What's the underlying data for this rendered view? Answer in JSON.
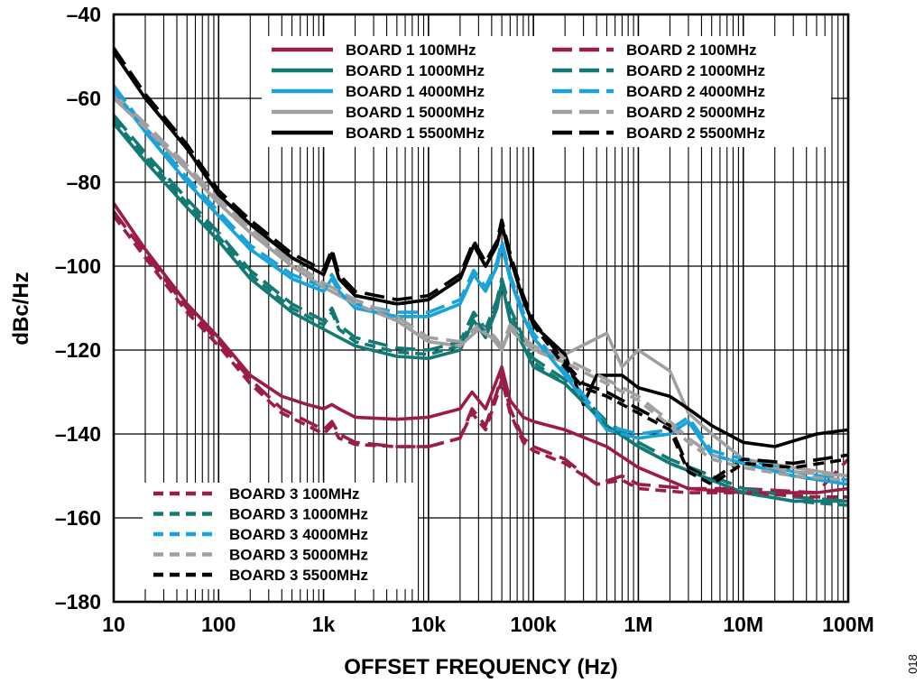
{
  "chart_data": {
    "type": "line",
    "xlabel": "OFFSET FREQUENCY (Hz)",
    "ylabel": "dBc/Hz",
    "x_scale": "log",
    "xlim": [
      10,
      100000000
    ],
    "ylim": [
      -180,
      -40
    ],
    "grid": true,
    "x_ticks": [
      {
        "value": 10,
        "label": "10"
      },
      {
        "value": 100,
        "label": "100"
      },
      {
        "value": 1000,
        "label": "1k"
      },
      {
        "value": 10000,
        "label": "10k"
      },
      {
        "value": 100000,
        "label": "100k"
      },
      {
        "value": 1000000,
        "label": "1M"
      },
      {
        "value": 10000000,
        "label": "10M"
      },
      {
        "value": 100000000,
        "label": "100M"
      }
    ],
    "y_ticks": [
      {
        "value": -40,
        "label": "–40"
      },
      {
        "value": -60,
        "label": "–60"
      },
      {
        "value": -80,
        "label": "–80"
      },
      {
        "value": -100,
        "label": "–100"
      },
      {
        "value": -120,
        "label": "–120"
      },
      {
        "value": -140,
        "label": "–140"
      },
      {
        "value": -160,
        "label": "–160"
      },
      {
        "value": -180,
        "label": "–180"
      }
    ],
    "legend_top": [
      "BOARD 1 100MHz",
      "BOARD 1 1000MHz",
      "BOARD 1 4000MHz",
      "BOARD 1 5000MHz",
      "BOARD 1 5500MHz",
      "BOARD 2 100MHz",
      "BOARD 2 1000MHz",
      "BOARD 2 4000MHz",
      "BOARD 2 5000MHz",
      "BOARD 2 5500MHz"
    ],
    "legend_bottom": [
      "BOARD 3 100MHz",
      "BOARD 3 1000MHz",
      "BOARD 3 4000MHz",
      "BOARD 3 5000MHz",
      "BOARD 3 5500MHz"
    ],
    "colors": {
      "100MHz": "#9b1d47",
      "1000MHz": "#127a72",
      "4000MHz": "#1aa3d9",
      "5000MHz": "#a0a0a0",
      "5500MHz": "#000000"
    },
    "series": [
      {
        "name": "BOARD 1 100MHz",
        "color": "#9b1d47",
        "dash": "solid",
        "x": [
          10,
          20,
          50,
          100,
          200,
          400,
          700,
          1000,
          1200,
          1400,
          2000,
          5000,
          10000,
          20000,
          26000,
          35000,
          45000,
          50000,
          60000,
          80000,
          100000,
          200000,
          500000,
          1000000,
          3000000,
          10000000,
          50000000,
          100000000
        ],
        "y": [
          -85,
          -96,
          -109,
          -117,
          -126,
          -131,
          -133,
          -134,
          -133,
          -134,
          -136,
          -136.5,
          -136,
          -134,
          -130,
          -134,
          -127,
          -124,
          -132,
          -136,
          -137,
          -139,
          -143,
          -148,
          -153,
          -154,
          -154,
          -153
        ]
      },
      {
        "name": "BOARD 1 1000MHz",
        "color": "#127a72",
        "dash": "solid",
        "x": [
          10,
          20,
          50,
          100,
          200,
          500,
          1000,
          2000,
          5000,
          10000,
          20000,
          27000,
          35000,
          45000,
          50000,
          60000,
          80000,
          100000,
          200000,
          500000,
          1000000,
          2000000,
          5000000,
          10000000,
          30000000,
          100000000
        ],
        "y": [
          -66,
          -75,
          -86,
          -94,
          -103,
          -111,
          -115,
          -119,
          -121.5,
          -122,
          -120,
          -113,
          -117,
          -110,
          -104,
          -113,
          -119,
          -124,
          -128,
          -138,
          -143,
          -147,
          -151,
          -154,
          -156,
          -156
        ]
      },
      {
        "name": "BOARD 1 4000MHz",
        "color": "#1aa3d9",
        "dash": "solid",
        "x": [
          10,
          20,
          50,
          100,
          200,
          500,
          1000,
          1200,
          1400,
          2000,
          5000,
          10000,
          20000,
          27000,
          35000,
          45000,
          50000,
          60000,
          80000,
          100000,
          200000,
          500000,
          1000000,
          2000000,
          3000000,
          5000000,
          10000000,
          30000000,
          100000000
        ],
        "y": [
          -58,
          -68,
          -80,
          -88,
          -96,
          -103,
          -106,
          -103,
          -106,
          -110,
          -112,
          -112,
          -109,
          -102,
          -106,
          -100,
          -95,
          -103,
          -112,
          -117,
          -126,
          -139,
          -141,
          -140,
          -137,
          -145,
          -147,
          -150,
          -152
        ]
      },
      {
        "name": "BOARD 1 5000MHz",
        "color": "#a0a0a0",
        "dash": "solid",
        "x": [
          10,
          20,
          50,
          100,
          200,
          500,
          1000,
          2000,
          5000,
          10000,
          20000,
          30000,
          40000,
          50000,
          60000,
          80000,
          100000,
          200000,
          500000,
          700000,
          1000000,
          2000000,
          3000000,
          5000000,
          10000000,
          30000000,
          100000000
        ],
        "y": [
          -60,
          -67,
          -77,
          -85,
          -92,
          -100,
          -105,
          -109,
          -113,
          -118,
          -119,
          -115,
          -117,
          -120,
          -115,
          -118,
          -120,
          -121,
          -116,
          -124,
          -120,
          -125,
          -135,
          -140,
          -146,
          -148,
          -150
        ]
      },
      {
        "name": "BOARD 1 5500MHz",
        "color": "#000000",
        "dash": "solid",
        "x": [
          10,
          20,
          50,
          100,
          200,
          500,
          1000,
          1200,
          1400,
          2000,
          5000,
          10000,
          20000,
          27000,
          35000,
          45000,
          50000,
          60000,
          80000,
          100000,
          200000,
          300000,
          400000,
          700000,
          1000000,
          2000000,
          3000000,
          5000000,
          10000000,
          20000000,
          50000000,
          100000000
        ],
        "y": [
          -49,
          -60,
          -72,
          -83,
          -90,
          -98,
          -102,
          -97,
          -103,
          -107,
          -109,
          -108,
          -103,
          -95,
          -100,
          -95,
          -90,
          -98,
          -108,
          -114,
          -121,
          -133,
          -126,
          -126,
          -129,
          -131,
          -134,
          -138,
          -142,
          -143,
          -140,
          -139
        ]
      },
      {
        "name": "BOARD 2 100MHz",
        "color": "#9b1d47",
        "dash": "long",
        "x": [
          10,
          20,
          50,
          100,
          200,
          400,
          700,
          1000,
          1200,
          1400,
          2000,
          5000,
          10000,
          20000,
          26000,
          35000,
          45000,
          50000,
          60000,
          80000,
          100000,
          200000,
          400000,
          700000,
          1000000,
          3000000,
          10000000,
          50000000,
          100000000
        ],
        "y": [
          -87,
          -97,
          -110,
          -118,
          -127,
          -134,
          -137,
          -139,
          -137,
          -140,
          -142,
          -143,
          -143,
          -141,
          -134,
          -138,
          -130,
          -126,
          -134,
          -141,
          -143,
          -146,
          -152,
          -150,
          -152,
          -153,
          -153,
          -154,
          -146
        ]
      },
      {
        "name": "BOARD 2 1000MHz",
        "color": "#127a72",
        "dash": "long",
        "x": [
          10,
          20,
          50,
          100,
          200,
          500,
          1000,
          1200,
          1400,
          2000,
          5000,
          10000,
          20000,
          27000,
          35000,
          45000,
          50000,
          60000,
          80000,
          100000,
          200000,
          500000,
          1000000,
          2000000,
          5000000,
          10000000,
          30000000,
          100000000
        ],
        "y": [
          -64,
          -73,
          -84,
          -92,
          -101,
          -109,
          -113,
          -110,
          -114,
          -117,
          -119.5,
          -120,
          -118,
          -111,
          -115,
          -108,
          -103,
          -110,
          -117,
          -122,
          -127,
          -137,
          -142,
          -146,
          -150,
          -153,
          -155,
          -156
        ]
      },
      {
        "name": "BOARD 2 4000MHz",
        "color": "#1aa3d9",
        "dash": "long",
        "x": [
          10,
          20,
          50,
          100,
          200,
          500,
          1000,
          1200,
          1400,
          2000,
          5000,
          10000,
          20000,
          27000,
          35000,
          45000,
          50000,
          60000,
          80000,
          100000,
          200000,
          500000,
          1000000,
          2000000,
          3000000,
          5000000,
          10000000,
          30000000,
          100000000
        ],
        "y": [
          -57,
          -67,
          -79,
          -87,
          -95,
          -102,
          -105,
          -102,
          -105,
          -109,
          -111,
          -111,
          -108,
          -101,
          -105,
          -99,
          -94,
          -102,
          -111,
          -116,
          -125,
          -138,
          -140,
          -139,
          -136,
          -144,
          -146,
          -149,
          -151
        ]
      },
      {
        "name": "BOARD 2 5000MHz",
        "color": "#a0a0a0",
        "dash": "long",
        "x": [
          10,
          20,
          50,
          100,
          200,
          500,
          1000,
          2000,
          5000,
          10000,
          20000,
          30000,
          40000,
          50000,
          60000,
          80000,
          100000,
          200000,
          500000,
          1000000,
          2000000,
          3000000,
          5000000,
          10000000,
          30000000,
          100000000
        ],
        "y": [
          -59,
          -66,
          -76,
          -84,
          -91,
          -99,
          -104,
          -108,
          -112,
          -117,
          -118,
          -114,
          -116,
          -119,
          -114,
          -117,
          -119,
          -122,
          -127,
          -131,
          -137,
          -141,
          -145,
          -147,
          -149,
          -150
        ]
      },
      {
        "name": "BOARD 2 5500MHz",
        "color": "#000000",
        "dash": "long",
        "x": [
          10,
          20,
          50,
          100,
          200,
          500,
          1000,
          1200,
          1400,
          2000,
          5000,
          10000,
          20000,
          27000,
          35000,
          45000,
          50000,
          60000,
          80000,
          100000,
          200000,
          300000,
          500000,
          1000000,
          2000000,
          3000000,
          5000000,
          10000000,
          30000000,
          100000000
        ],
        "y": [
          -48,
          -59,
          -71,
          -82,
          -89,
          -97,
          -101,
          -96,
          -102,
          -106,
          -108,
          -107,
          -102,
          -94,
          -99,
          -94,
          -89,
          -97,
          -107,
          -113,
          -123,
          -128,
          -130,
          -134,
          -138,
          -148,
          -151,
          -146,
          -147,
          -145
        ]
      },
      {
        "name": "BOARD 3 100MHz",
        "color": "#9b1d47",
        "dash": "short",
        "x": [
          10,
          20,
          50,
          100,
          200,
          400,
          700,
          1000,
          1200,
          1400,
          2000,
          5000,
          10000,
          20000,
          26000,
          35000,
          45000,
          50000,
          60000,
          80000,
          100000,
          200000,
          400000,
          700000,
          1000000,
          3000000,
          10000000,
          50000000,
          100000000
        ],
        "y": [
          -88,
          -98,
          -111,
          -119,
          -128,
          -135,
          -138,
          -140,
          -138,
          -141,
          -142.5,
          -143,
          -143,
          -141,
          -135,
          -139,
          -131,
          -127,
          -135,
          -142,
          -144,
          -147,
          -152,
          -151,
          -153,
          -154,
          -154,
          -155,
          -155
        ]
      },
      {
        "name": "BOARD 3 1000MHz",
        "color": "#127a72",
        "dash": "short",
        "x": [
          10,
          20,
          50,
          100,
          200,
          500,
          1000,
          1200,
          1400,
          2000,
          5000,
          10000,
          20000,
          27000,
          35000,
          45000,
          50000,
          60000,
          80000,
          100000,
          200000,
          500000,
          1000000,
          2000000,
          5000000,
          10000000,
          30000000,
          100000000
        ],
        "y": [
          -65,
          -74,
          -85,
          -93,
          -102,
          -110,
          -114,
          -111,
          -115,
          -118,
          -120.5,
          -121,
          -119,
          -112,
          -116,
          -109,
          -104,
          -111,
          -118,
          -123,
          -128,
          -138,
          -143,
          -147,
          -151,
          -154,
          -156,
          -157
        ]
      },
      {
        "name": "BOARD 3 4000MHz",
        "color": "#1aa3d9",
        "dash": "short",
        "x": [
          10,
          20,
          50,
          100,
          200,
          500,
          1000,
          1200,
          1400,
          2000,
          5000,
          10000,
          20000,
          27000,
          35000,
          45000,
          50000,
          60000,
          80000,
          100000,
          200000,
          500000,
          1000000,
          2000000,
          3000000,
          5000000,
          10000000,
          30000000,
          100000000
        ],
        "y": [
          -58,
          -68,
          -80,
          -88,
          -96,
          -103,
          -106,
          -103,
          -106,
          -110,
          -112,
          -112,
          -109,
          -102,
          -106,
          -100,
          -95,
          -103,
          -112,
          -117,
          -126,
          -139,
          -141,
          -140,
          -137,
          -145,
          -147,
          -150,
          -152
        ]
      },
      {
        "name": "BOARD 3 5000MHz",
        "color": "#a0a0a0",
        "dash": "short",
        "x": [
          10,
          20,
          50,
          100,
          200,
          500,
          1000,
          2000,
          5000,
          10000,
          20000,
          30000,
          40000,
          50000,
          60000,
          80000,
          100000,
          200000,
          500000,
          1000000,
          2000000,
          3000000,
          5000000,
          10000000,
          30000000,
          100000000
        ],
        "y": [
          -60,
          -67,
          -77,
          -85,
          -92,
          -100,
          -105,
          -109,
          -113,
          -118,
          -119,
          -115,
          -117,
          -120,
          -115,
          -118,
          -120,
          -123,
          -128,
          -132,
          -138,
          -142,
          -146,
          -148,
          -150,
          -151
        ]
      },
      {
        "name": "BOARD 3 5500MHz",
        "color": "#000000",
        "dash": "short",
        "x": [
          10,
          20,
          50,
          100,
          200,
          500,
          1000,
          1200,
          1400,
          2000,
          5000,
          10000,
          20000,
          27000,
          35000,
          45000,
          50000,
          60000,
          80000,
          100000,
          200000,
          300000,
          500000,
          1000000,
          2000000,
          3000000,
          5000000,
          10000000,
          30000000,
          100000000
        ],
        "y": [
          -49,
          -60,
          -72,
          -83,
          -90,
          -98,
          -102,
          -97,
          -103,
          -107,
          -109,
          -108,
          -103,
          -95,
          -100,
          -95,
          -90,
          -98,
          -108,
          -114,
          -124,
          -129,
          -131,
          -135,
          -139,
          -149,
          -152,
          -147,
          -148,
          -146
        ]
      }
    ]
  },
  "figure_id": "018"
}
